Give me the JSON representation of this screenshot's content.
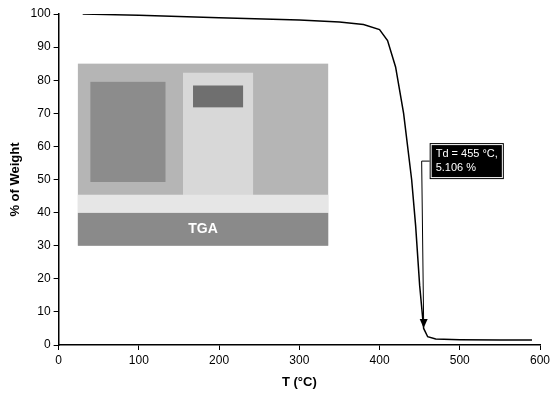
{
  "chart_data": {
    "type": "line",
    "x_label": "T (°C)",
    "y_label": "% of Weight",
    "x": [
      30,
      100,
      200,
      300,
      350,
      380,
      400,
      410,
      420,
      430,
      440,
      445,
      450,
      455,
      460,
      470,
      500,
      550,
      590
    ],
    "values": [
      100,
      99.6,
      98.9,
      98.2,
      97.6,
      96.8,
      95.3,
      92,
      84,
      70,
      50,
      36,
      18,
      5,
      2.5,
      1.8,
      1.6,
      1.5,
      1.5
    ],
    "color": "#000000",
    "marker": "none",
    "line_style": "solid",
    "xlim": [
      0,
      600
    ],
    "xticks": [
      0,
      100,
      200,
      300,
      400,
      500,
      600
    ],
    "ylim": [
      0,
      100
    ],
    "yticks": [
      0,
      10,
      20,
      30,
      40,
      50,
      60,
      70,
      80,
      90,
      100
    ],
    "grid": false,
    "annotations": [
      {
        "text": [
          "Td = 455 °C,",
          "5.106 %"
        ],
        "x": 455,
        "y": 5.106
      }
    ],
    "inset_label": "TGA"
  }
}
